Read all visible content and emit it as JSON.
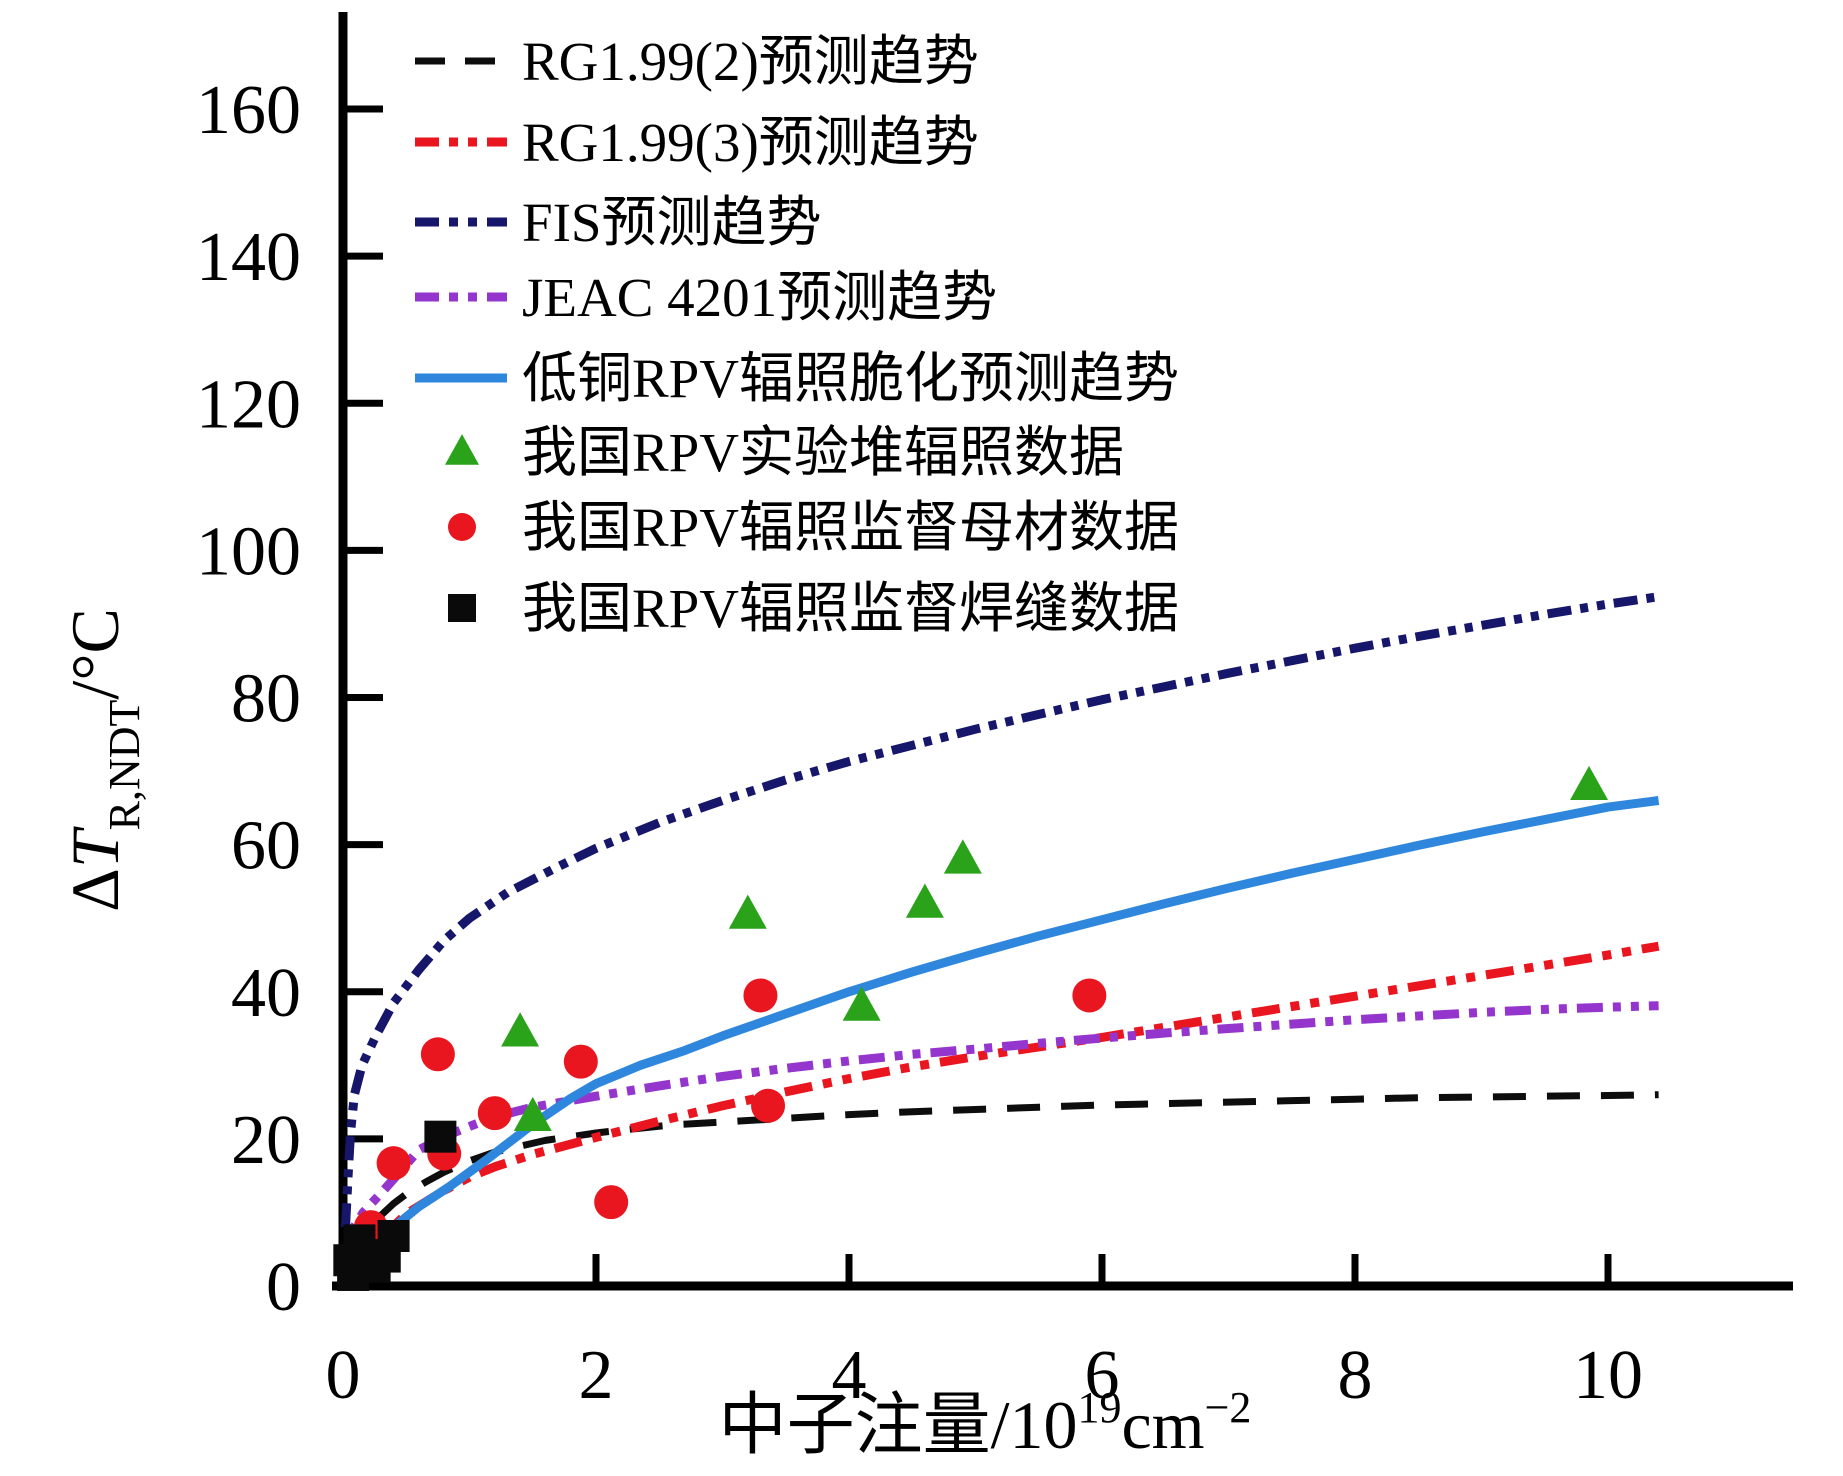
{
  "chart_data": {
    "type": "line",
    "title": "",
    "xlabel_parts": [
      {
        "t": "中子注量/10"
      },
      {
        "t": "19",
        "sup": true
      },
      {
        "t": "cm"
      },
      {
        "t": "−2",
        "sup": true
      }
    ],
    "ylabel_parts": [
      {
        "t": "Δ"
      },
      {
        "t": "T",
        "italic": true
      },
      {
        "t": "R,NDT",
        "sub": true
      },
      {
        "t": "/°C"
      }
    ],
    "xlim": [
      0,
      11.45
    ],
    "ylim": [
      0,
      172
    ],
    "x_ticks": [
      0,
      2,
      4,
      6,
      8,
      10
    ],
    "y_ticks": [
      0,
      20,
      40,
      60,
      80,
      100,
      120,
      140,
      160
    ],
    "grid": false,
    "legend_position": "upper-left-inside",
    "axis_color": "#000000",
    "series": [
      {
        "name": "RG1.99(2)预测趋势",
        "kind": "line",
        "style": "dashed",
        "color": "#0d0d0d",
        "width": 7,
        "dash": "33 21",
        "points": [
          [
            0.05,
            3.5
          ],
          [
            0.1,
            5.5
          ],
          [
            0.2,
            7.8
          ],
          [
            0.3,
            9.6
          ],
          [
            0.4,
            11.2
          ],
          [
            0.5,
            12.5
          ],
          [
            0.65,
            14.1
          ],
          [
            0.8,
            15.5
          ],
          [
            1,
            17
          ],
          [
            1.2,
            18.2
          ],
          [
            1.4,
            19
          ],
          [
            1.6,
            19.8
          ],
          [
            1.8,
            20.3
          ],
          [
            2,
            20.8
          ],
          [
            2.2,
            21.2
          ],
          [
            2.6,
            21.9
          ],
          [
            3,
            22.3
          ],
          [
            3.5,
            22.8
          ],
          [
            4,
            23.3
          ],
          [
            4.5,
            23.7
          ],
          [
            5,
            24
          ],
          [
            5.5,
            24.3
          ],
          [
            6,
            24.6
          ],
          [
            6.5,
            24.8
          ],
          [
            7,
            25
          ],
          [
            7.5,
            25.2
          ],
          [
            8,
            25.4
          ],
          [
            8.5,
            25.6
          ],
          [
            9,
            25.7
          ],
          [
            9.5,
            25.8
          ],
          [
            10,
            25.9
          ],
          [
            10.4,
            26
          ]
        ]
      },
      {
        "name": "RG1.99(3)预测趋势",
        "kind": "line",
        "style": "dashdotdot",
        "color": "#e9161f",
        "width": 9,
        "dash": "28 11 9 11 9 11",
        "points": [
          [
            0.1,
            2.5
          ],
          [
            0.3,
            6.5
          ],
          [
            0.5,
            9.8
          ],
          [
            0.8,
            13
          ],
          [
            1,
            14.8
          ],
          [
            1.2,
            16.2
          ],
          [
            1.5,
            17.9
          ],
          [
            2,
            20.2
          ],
          [
            2.5,
            22.4
          ],
          [
            3,
            24.5
          ],
          [
            3.5,
            26.4
          ],
          [
            4,
            28.2
          ],
          [
            4.5,
            29.8
          ],
          [
            5,
            31.2
          ],
          [
            5.5,
            32.5
          ],
          [
            6,
            33.8
          ],
          [
            6.5,
            35.2
          ],
          [
            7,
            36.6
          ],
          [
            7.5,
            38
          ],
          [
            8,
            39.4
          ],
          [
            8.5,
            40.8
          ],
          [
            9,
            42.2
          ],
          [
            9.5,
            43.6
          ],
          [
            10,
            45
          ],
          [
            10.4,
            46.2
          ]
        ]
      },
      {
        "name": "FIS预测趋势",
        "kind": "line",
        "style": "dashdotdot",
        "color": "#16166b",
        "width": 9,
        "dash": "24 9 8 9 8 9",
        "points": [
          [
            0.02,
            8
          ],
          [
            0.04,
            15
          ],
          [
            0.06,
            21
          ],
          [
            0.09,
            26
          ],
          [
            0.15,
            30
          ],
          [
            0.26,
            34
          ],
          [
            0.4,
            38.5
          ],
          [
            0.6,
            43
          ],
          [
            0.8,
            47
          ],
          [
            1,
            50
          ],
          [
            1.3,
            53.5
          ],
          [
            1.7,
            57
          ],
          [
            2,
            59.5
          ],
          [
            2.5,
            63
          ],
          [
            3,
            66
          ],
          [
            3.5,
            68.8
          ],
          [
            4,
            71.3
          ],
          [
            4.5,
            73.5
          ],
          [
            5,
            75.7
          ],
          [
            5.5,
            77.7
          ],
          [
            6,
            79.7
          ],
          [
            6.5,
            81.5
          ],
          [
            7,
            83.3
          ],
          [
            7.5,
            85
          ],
          [
            8,
            86.7
          ],
          [
            8.5,
            88.3
          ],
          [
            9,
            89.8
          ],
          [
            9.5,
            91.3
          ],
          [
            10,
            92.7
          ],
          [
            10.4,
            93.7
          ]
        ]
      },
      {
        "name": "JEAC 4201预测趋势",
        "kind": "line",
        "style": "dashdotdot",
        "color": "#9436cd",
        "width": 9,
        "dash": "26 10 8 10 8 10",
        "points": [
          [
            0.03,
            5
          ],
          [
            0.08,
            7.8
          ],
          [
            0.16,
            10
          ],
          [
            0.3,
            12.6
          ],
          [
            0.45,
            15.5
          ],
          [
            0.6,
            18.5
          ],
          [
            0.8,
            20.3
          ],
          [
            1,
            21.7
          ],
          [
            1.2,
            23
          ],
          [
            1.5,
            24.3
          ],
          [
            2,
            25.8
          ],
          [
            2.5,
            27.2
          ],
          [
            3,
            28.5
          ],
          [
            3.5,
            29.6
          ],
          [
            4,
            30.6
          ],
          [
            4.5,
            31.5
          ],
          [
            5,
            32.2
          ],
          [
            5.5,
            33
          ],
          [
            6,
            33.7
          ],
          [
            6.5,
            34.4
          ],
          [
            7,
            35
          ],
          [
            7.5,
            35.6
          ],
          [
            8,
            36.2
          ],
          [
            8.5,
            36.7
          ],
          [
            9,
            37.2
          ],
          [
            9.5,
            37.6
          ],
          [
            10,
            37.9
          ],
          [
            10.4,
            38.1
          ]
        ]
      },
      {
        "name": "低铜RPV辐照脆化预测趋势",
        "kind": "line",
        "style": "solid",
        "color": "#2e86dd",
        "width": 9,
        "dash": "",
        "points": [
          [
            0.1,
            1.5
          ],
          [
            0.25,
            4.5
          ],
          [
            0.4,
            8
          ],
          [
            0.6,
            10.8
          ],
          [
            0.84,
            13.5
          ],
          [
            1.13,
            17.1
          ],
          [
            1.5,
            22
          ],
          [
            1.8,
            25.5
          ],
          [
            2,
            27.5
          ],
          [
            2.35,
            30
          ],
          [
            2.7,
            32
          ],
          [
            3,
            34
          ],
          [
            3.5,
            37
          ],
          [
            4,
            40
          ],
          [
            4.5,
            42.7
          ],
          [
            5,
            45.2
          ],
          [
            5.5,
            47.6
          ],
          [
            6,
            49.8
          ],
          [
            6.5,
            52
          ],
          [
            7,
            54.1
          ],
          [
            7.5,
            56.1
          ],
          [
            8,
            58
          ],
          [
            8.5,
            59.9
          ],
          [
            9,
            61.7
          ],
          [
            9.5,
            63.4
          ],
          [
            10,
            65.1
          ],
          [
            10.4,
            66
          ]
        ]
      },
      {
        "name": "我国RPV实验堆辐照数据",
        "kind": "scatter",
        "marker": "triangle",
        "color": "#2aa21a",
        "size": 19,
        "points": [
          [
            1.4,
            34.5
          ],
          [
            1.5,
            23
          ],
          [
            3.2,
            50.5
          ],
          [
            4.1,
            38
          ],
          [
            4.6,
            52
          ],
          [
            4.9,
            58
          ],
          [
            9.85,
            68
          ]
        ]
      },
      {
        "name": "我国RPV辐照监督母材数据",
        "kind": "scatter",
        "marker": "circle",
        "color": "#e9161f",
        "size": 17,
        "points": [
          [
            0.22,
            8
          ],
          [
            0.4,
            16.7
          ],
          [
            0.75,
            31.5
          ],
          [
            0.8,
            18
          ],
          [
            1.2,
            23.5
          ],
          [
            1.88,
            30.5
          ],
          [
            2.12,
            11.4
          ],
          [
            3.3,
            39.5
          ],
          [
            3.36,
            24.5
          ],
          [
            5.9,
            39.5
          ]
        ]
      },
      {
        "name": "我国RPV辐照监督焊缝数据",
        "kind": "scatter",
        "marker": "square",
        "color": "#0a0a0a",
        "size": 16,
        "points": [
          [
            0.05,
            3.5
          ],
          [
            0.08,
            1.5
          ],
          [
            0.13,
            6.2
          ],
          [
            0.18,
            4.2
          ],
          [
            0.25,
            2.6
          ],
          [
            0.33,
            4
          ],
          [
            0.4,
            6.8
          ],
          [
            0.77,
            20.3
          ]
        ]
      }
    ],
    "legend": [
      {
        "label": "RG1.99(2)预测趋势",
        "swatch": "dashed",
        "color": "#0d0d0d"
      },
      {
        "label": "RG1.99(3)预测趋势",
        "swatch": "dashdotdot",
        "color": "#e9161f"
      },
      {
        "label": "FIS预测趋势",
        "swatch": "dashdotdot",
        "color": "#16166b"
      },
      {
        "label": "JEAC 4201预测趋势",
        "swatch": "dashdotdot",
        "color": "#9436cd"
      },
      {
        "label": "低铜RPV辐照脆化预测趋势",
        "swatch": "solid",
        "color": "#2e86dd"
      },
      {
        "label": "我国RPV实验堆辐照数据",
        "swatch": "triangle",
        "color": "#2aa21a"
      },
      {
        "label": "我国RPV辐照监督母材数据",
        "swatch": "circle",
        "color": "#e9161f"
      },
      {
        "label": "我国RPV辐照监督焊缝数据",
        "swatch": "square",
        "color": "#0a0a0a"
      }
    ]
  }
}
